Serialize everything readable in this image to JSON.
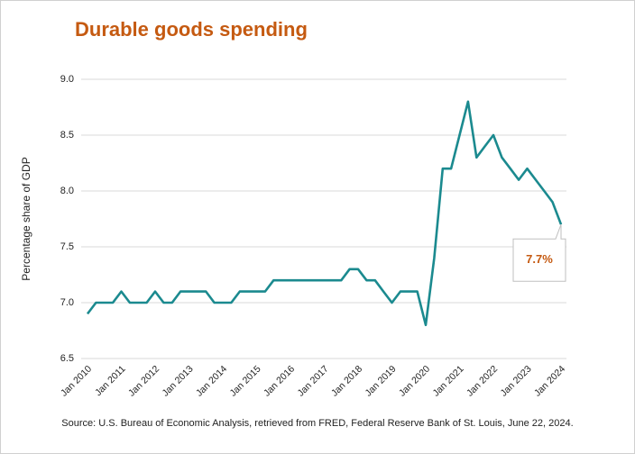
{
  "chart_data": {
    "type": "line",
    "title": "Durable goods spending",
    "y_label": "Percentage share of GDP",
    "source": "Source: U.S. Bureau of Economic Analysis, retrieved from FRED, Federal Reserve Bank of St. Louis, June 22, 2024.",
    "categories": [
      "Jan 2010",
      null,
      null,
      null,
      "Jan 2011",
      null,
      null,
      null,
      "Jan 2012",
      null,
      null,
      null,
      "Jan 2013",
      null,
      null,
      null,
      "Jan 2014",
      null,
      null,
      null,
      "Jan 2015",
      null,
      null,
      null,
      "Jan 2016",
      null,
      null,
      null,
      "Jan 2017",
      null,
      null,
      null,
      "Jan 2018",
      null,
      null,
      null,
      "Jan 2019",
      null,
      null,
      null,
      "Jan 2020",
      null,
      null,
      null,
      "Jan 2021",
      null,
      null,
      null,
      "Jan 2022",
      null,
      null,
      null,
      "Jan 2023",
      null,
      null,
      null,
      "Jan 2024"
    ],
    "series": [
      {
        "color": "#1b8a8f",
        "values": [
          6.9,
          7.0,
          7.0,
          7.0,
          7.1,
          7.0,
          7.0,
          7.0,
          7.1,
          7.0,
          7.0,
          7.1,
          7.1,
          7.1,
          7.1,
          7.0,
          7.0,
          7.0,
          7.1,
          7.1,
          7.1,
          7.1,
          7.2,
          7.2,
          7.2,
          7.2,
          7.2,
          7.2,
          7.2,
          7.2,
          7.2,
          7.3,
          7.3,
          7.2,
          7.2,
          7.1,
          7.0,
          7.1,
          7.1,
          7.1,
          6.8,
          7.4,
          8.2,
          8.2,
          8.5,
          8.8,
          8.3,
          8.4,
          8.5,
          8.3,
          8.2,
          8.1,
          8.2,
          8.1,
          8.0,
          7.9,
          7.7
        ],
        "value_labels": [
          null,
          null,
          null,
          null,
          null,
          null,
          null,
          null,
          null,
          null,
          null,
          null,
          null,
          null,
          null,
          null,
          null,
          null,
          null,
          null,
          null,
          null,
          null,
          null,
          null,
          null,
          null,
          null,
          null,
          null,
          null,
          null,
          null,
          null,
          null,
          null,
          null,
          null,
          null,
          null,
          null,
          null,
          null,
          null,
          null,
          null,
          null,
          null,
          null,
          null,
          null,
          null,
          null,
          null,
          null,
          null,
          "7.7%"
        ]
      }
    ],
    "ylim": [
      6.5,
      9.0
    ],
    "yticks": [
      6.5,
      {
        "value": 7.0,
        "label": "7.0"
      },
      7.5,
      {
        "value": 8.0,
        "label": "8.0"
      },
      8.5,
      {
        "value": 9.0,
        "label": "9.0"
      }
    ],
    "grid": true
  }
}
